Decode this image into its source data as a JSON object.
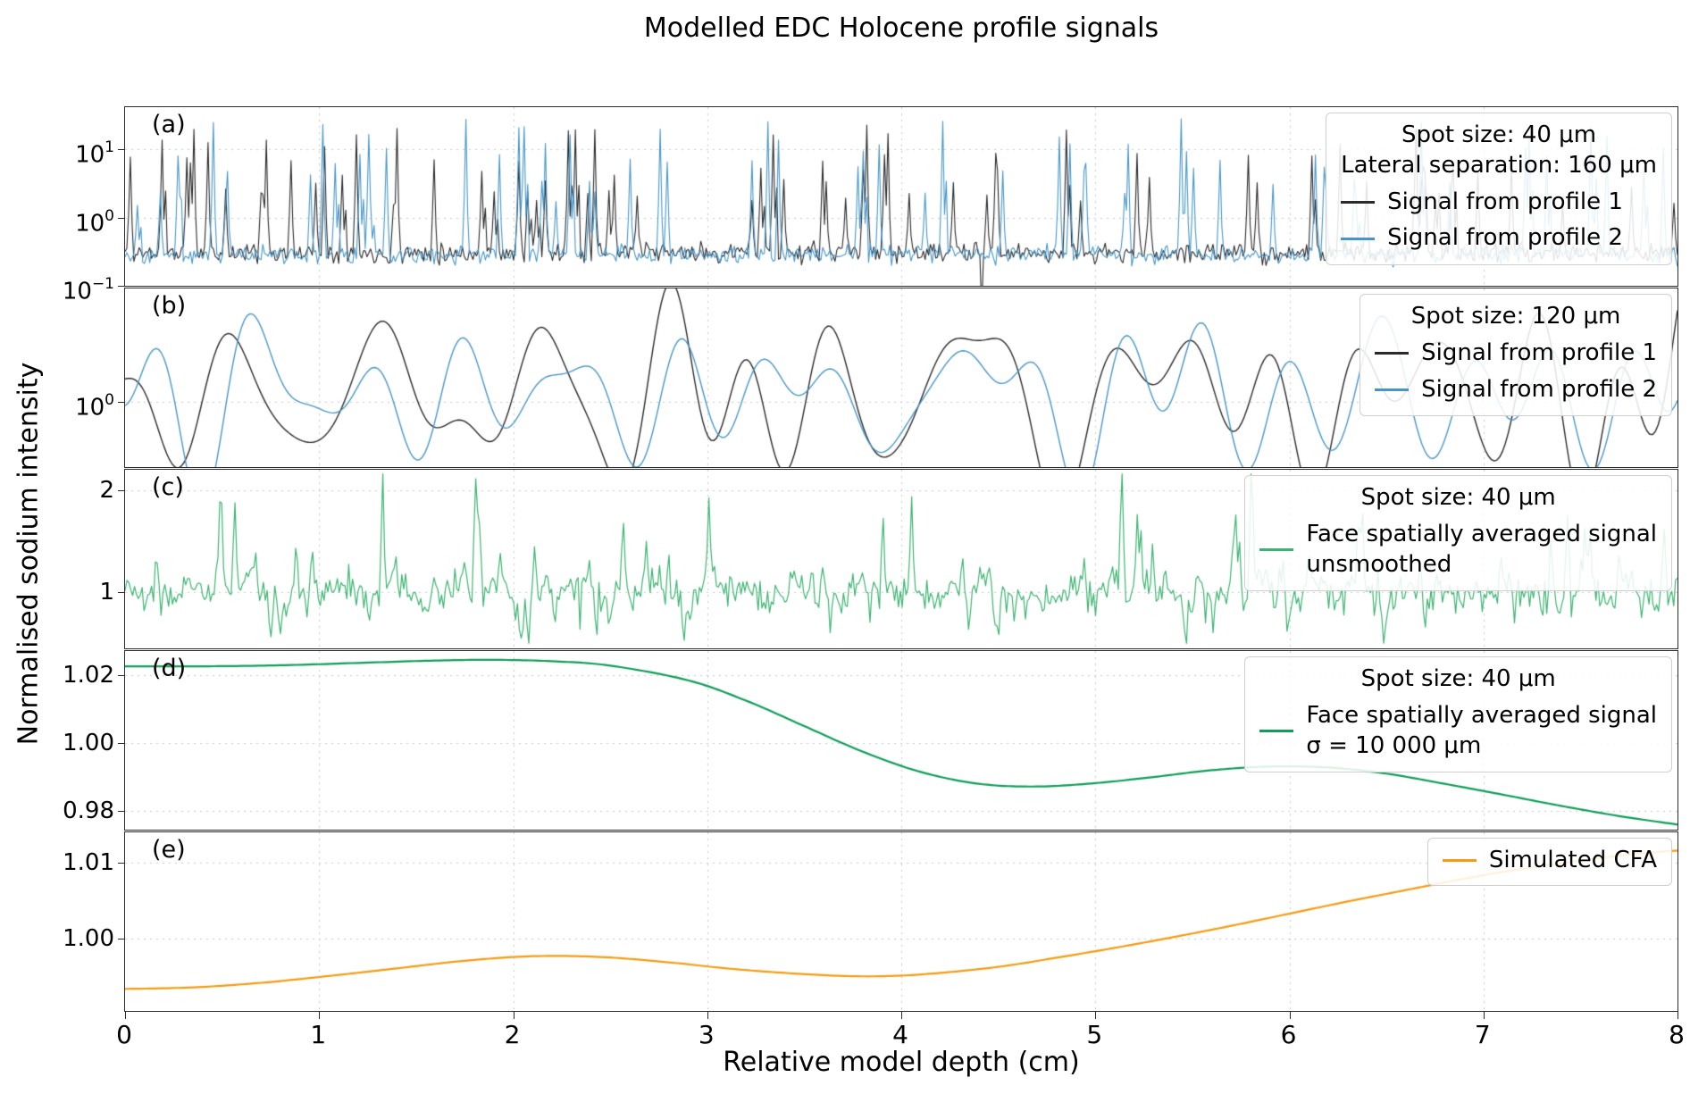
{
  "chart_data": {
    "type": "line",
    "title": "Modelled EDC Holocene profile signals",
    "xlabel": "Relative model depth (cm)",
    "ylabel": "Normalised sodium intensity",
    "x": {
      "min": 0,
      "max": 8,
      "ticks": [
        {
          "label": "0",
          "value": 0
        },
        {
          "label": "1",
          "value": 1
        },
        {
          "label": "2",
          "value": 2
        },
        {
          "label": "3",
          "value": 3
        },
        {
          "label": "4",
          "value": 4
        },
        {
          "label": "5",
          "value": 5
        },
        {
          "label": "6",
          "value": 6
        },
        {
          "label": "7",
          "value": 7
        },
        {
          "label": "8",
          "value": 8
        }
      ],
      "grid": [
        1,
        2,
        3,
        4,
        5,
        6,
        7
      ]
    },
    "panels": [
      {
        "tag": "(a)",
        "yscale": "log",
        "y_range": [
          -1.0,
          1.62
        ],
        "yticks": [
          {
            "label": "10",
            "exp": "1",
            "value": 10
          },
          {
            "label": "10",
            "exp": "0",
            "value": 1
          },
          {
            "label": "10",
            "exp": "−1",
            "value": 0.1
          }
        ],
        "grid_y": [
          10,
          1
        ],
        "legend": {
          "title_lines": [
            "Spot size: 40 μm",
            "Lateral separation: 160 μm"
          ],
          "entries": [
            {
              "label": "Signal from profile 1",
              "color": "#2a2a2a"
            },
            {
              "label": "Signal from profile 2",
              "color": "#4696c8"
            }
          ]
        },
        "series": [
          {
            "name": "Signal from profile 1",
            "color": "#2a2a2a",
            "lw": 1.1,
            "gen": {
              "kind": "spiky-log",
              "seed": 11,
              "n": 880,
              "base": -0.52,
              "base_noise": 0.07,
              "spike_count": 74,
              "spike_min": 0.18,
              "spike_max": 1.42,
              "spike_bias": 1.25,
              "down_count": 1,
              "down_value": -1.35
            }
          },
          {
            "name": "Signal from profile 2",
            "color": "#4696c8",
            "lw": 1.1,
            "gen": {
              "kind": "spiky-log",
              "seed": 47,
              "n": 880,
              "base": -0.54,
              "base_noise": 0.065,
              "spike_count": 68,
              "spike_min": 0.18,
              "spike_max": 1.45,
              "spike_bias": 1.25,
              "down_count": 0,
              "down_value": -1.35
            }
          }
        ]
      },
      {
        "tag": "(b)",
        "yscale": "log",
        "y_range": [
          -0.55,
          0.95
        ],
        "yticks": [
          {
            "label": "10",
            "exp": "0",
            "value": 1
          }
        ],
        "grid_y": [
          1
        ],
        "legend": {
          "title_lines": [
            "Spot size: 120 μm"
          ],
          "entries": [
            {
              "label": "Signal from profile 1",
              "color": "#2a2a2a"
            },
            {
              "label": "Signal from profile 2",
              "color": "#4696c8"
            }
          ]
        },
        "series": [
          {
            "name": "Signal from profile 1",
            "color": "#2a2a2a",
            "lw": 1.4,
            "gen": {
              "kind": "smooth-log",
              "seed": 5,
              "shared_seed": 3,
              "n": 560,
              "waves": 11,
              "fmin": 0.7,
              "fmax": 2.9,
              "mean": 0.05,
              "amp": 0.4,
              "shared_w": 0.7,
              "own_w": 0.72
            }
          },
          {
            "name": "Signal from profile 2",
            "color": "#4696c8",
            "lw": 1.4,
            "gen": {
              "kind": "smooth-log",
              "seed": 9,
              "shared_seed": 3,
              "n": 560,
              "waves": 11,
              "fmin": 0.7,
              "fmax": 2.9,
              "mean": 0.05,
              "amp": 0.4,
              "shared_w": 0.7,
              "own_w": 0.72
            }
          }
        ]
      },
      {
        "tag": "(c)",
        "yscale": "linear",
        "y_range": [
          0.45,
          2.2
        ],
        "yticks": [
          {
            "label": "2",
            "value": 2
          },
          {
            "label": "1",
            "value": 1
          }
        ],
        "grid_y": [
          2,
          1
        ],
        "legend": {
          "title_lines": [
            "Spot size: 40 μm"
          ],
          "entries": [
            {
              "label_lines": [
                "Face spatially averaged signal",
                "unsmoothed"
              ],
              "color": "#3cb371"
            }
          ]
        },
        "series": [
          {
            "name": "Face spatially averaged signal unsmoothed",
            "color": "#3cb371",
            "lw": 1.2,
            "gen": {
              "kind": "noisy-linear",
              "seed": 21,
              "smooth_seed": 77,
              "n": 820,
              "waves": 14,
              "fmin": 1.5,
              "fmax": 7.0,
              "mean": 1.0,
              "smooth_amp": 0.07,
              "noise": 0.085,
              "spike_count": 62,
              "spike_min": 0.2,
              "spike_span": 0.95,
              "spike_bias": 1.9,
              "dip_count": 48,
              "dip_min": 0.1,
              "dip_span": 0.28,
              "clip_min": 0.5,
              "clip_max": 2.16
            }
          }
        ]
      },
      {
        "tag": "(d)",
        "yscale": "linear",
        "y_range": [
          0.9745,
          1.0271
        ],
        "yticks": [
          {
            "label": "1.02",
            "value": 1.02
          },
          {
            "label": "1.00",
            "value": 1.0
          },
          {
            "label": "0.98",
            "value": 0.98
          }
        ],
        "grid_y": [
          1.02,
          1.0,
          0.98
        ],
        "legend": {
          "title_lines": [
            "Spot size: 40 μm"
          ],
          "entries": [
            {
              "label_lines": [
                "Face spatially averaged signal",
                "σ = 10 000 μm"
              ],
              "color": "#0f9d58"
            }
          ]
        },
        "series": [
          {
            "name": "Face spatially averaged signal σ = 10 000 μm",
            "color": "#0f9d58",
            "lw": 2.2,
            "x": [
              0,
              0.4,
              0.8,
              1.2,
              1.6,
              1.9,
              2.2,
              2.5,
              2.9,
              3.2,
              3.5,
              3.8,
              4.1,
              4.4,
              4.7,
              5.0,
              5.3,
              5.6,
              5.9,
              6.2,
              6.5,
              6.8,
              7.1,
              7.4,
              7.7,
              8.0
            ],
            "y": [
              1.0226,
              1.0226,
              1.0229,
              1.0236,
              1.0243,
              1.0245,
              1.0241,
              1.0228,
              1.0185,
              1.0125,
              1.005,
              0.9975,
              0.9915,
              0.988,
              0.9872,
              0.9882,
              0.99,
              0.992,
              0.9931,
              0.9928,
              0.991,
              0.988,
              0.9848,
              0.9815,
              0.9785,
              0.976
            ]
          }
        ]
      },
      {
        "tag": "(e)",
        "yscale": "linear",
        "y_range": [
          0.9905,
          1.014
        ],
        "yticks": [
          {
            "label": "1.01",
            "value": 1.01
          },
          {
            "label": "1.00",
            "value": 1.0
          }
        ],
        "grid_y": [
          1.01,
          1.0
        ],
        "legend": {
          "title_lines": [],
          "entries": [
            {
              "label": "Simulated CFA",
              "color": "#f39c12"
            }
          ]
        },
        "series": [
          {
            "name": "Simulated CFA",
            "color": "#f39c12",
            "lw": 2.2,
            "x": [
              0,
              0.35,
              0.7,
              1.05,
              1.4,
              1.75,
              2.1,
              2.45,
              2.8,
              3.1,
              3.4,
              3.7,
              3.95,
              4.2,
              4.5,
              4.8,
              5.1,
              5.4,
              5.7,
              6.0,
              6.3,
              6.6,
              6.9,
              7.2,
              7.5,
              7.8,
              8.0
            ],
            "y": [
              0.9934,
              0.9936,
              0.9942,
              0.9951,
              0.9961,
              0.9971,
              0.9977,
              0.9976,
              0.9969,
              0.9961,
              0.9955,
              0.9951,
              0.9951,
              0.9955,
              0.9963,
              0.9975,
              0.9988,
              1.0002,
              1.0017,
              1.0033,
              1.0049,
              1.0064,
              1.0079,
              1.0092,
              1.0103,
              1.0112,
              1.0116
            ]
          }
        ]
      }
    ]
  }
}
